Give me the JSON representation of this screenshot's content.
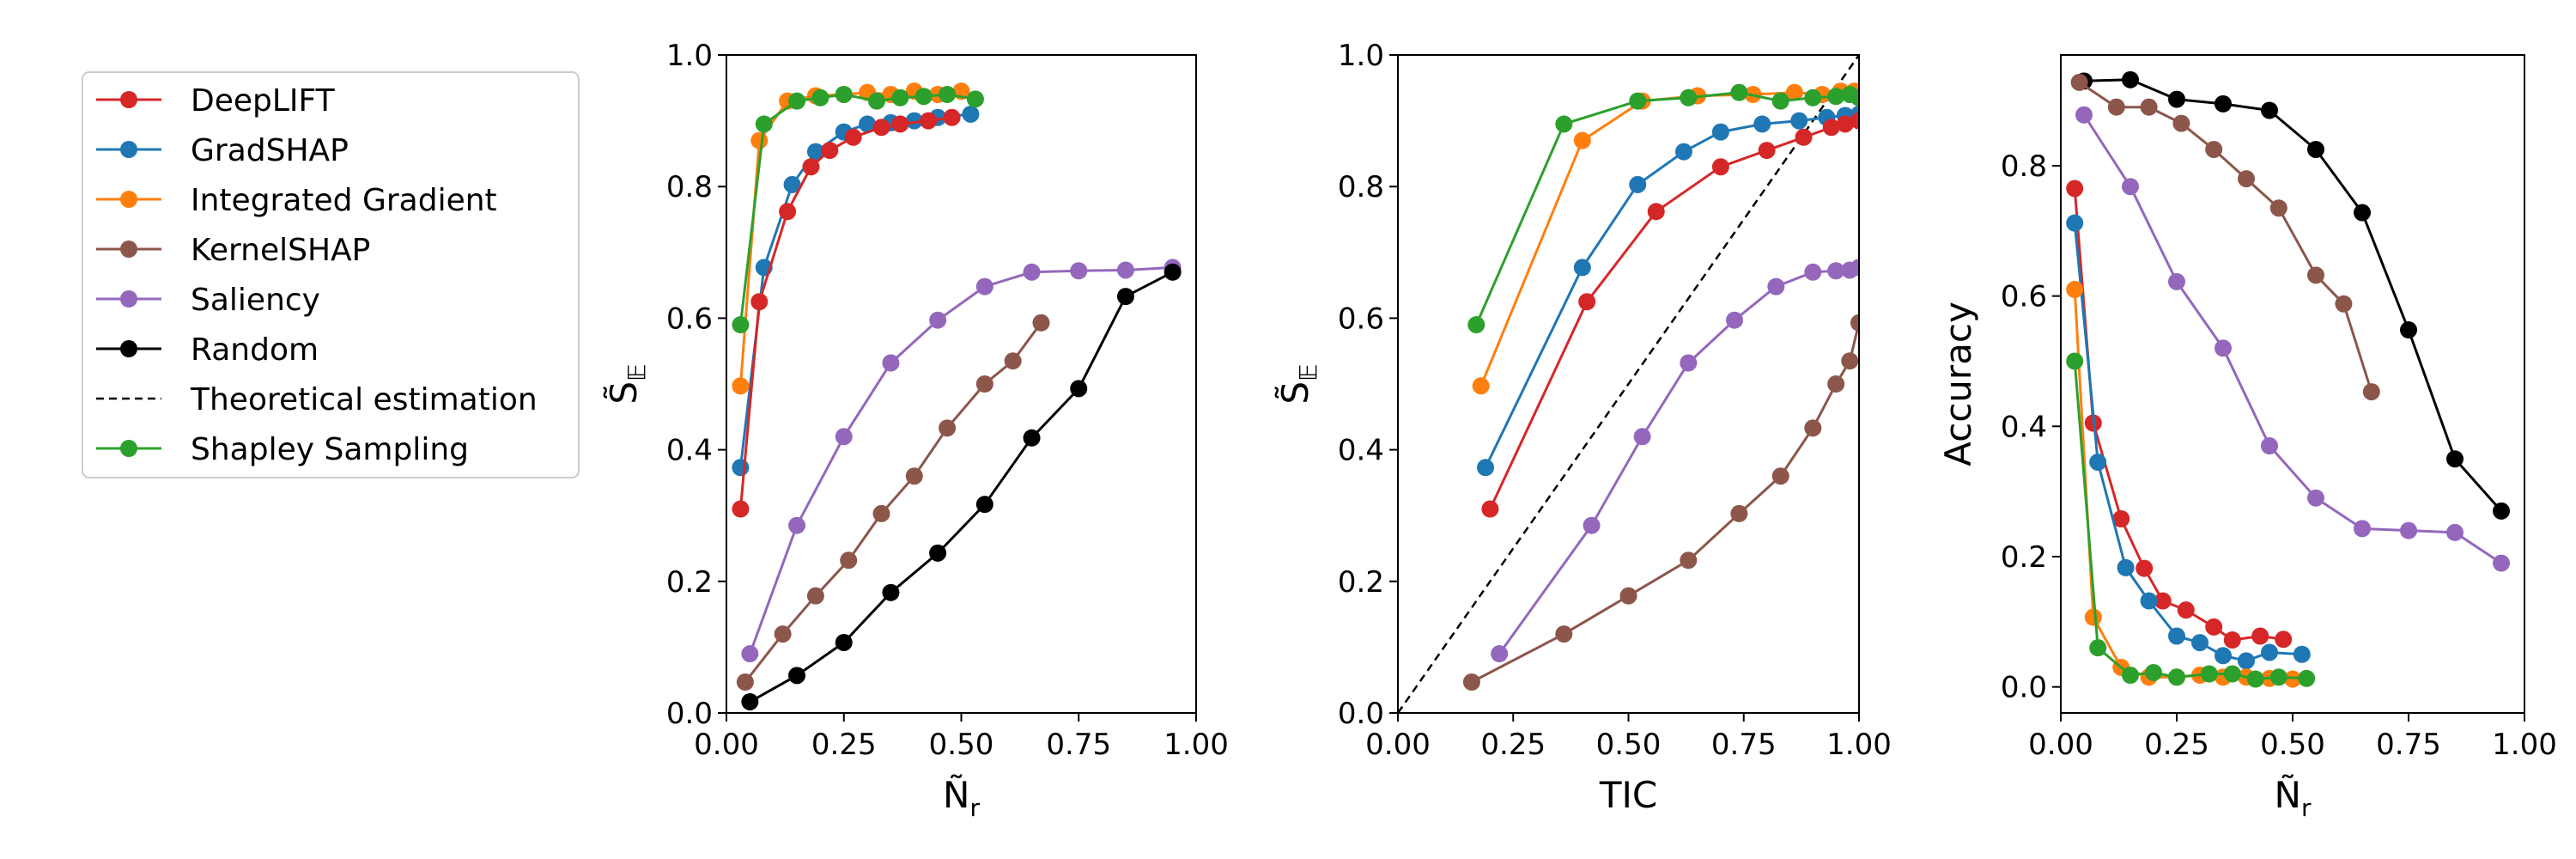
{
  "legend": {
    "entries": [
      {
        "label": "DeepLIFT",
        "color": "#d62728",
        "marker": "circle"
      },
      {
        "label": "GradSHAP",
        "color": "#1f77b4",
        "marker": "circle"
      },
      {
        "label": "Integrated Gradient",
        "color": "#ff7f0e",
        "marker": "circle"
      },
      {
        "label": "KernelSHAP",
        "color": "#8c564b",
        "marker": "circle"
      },
      {
        "label": "Saliency",
        "color": "#9467bd",
        "marker": "circle"
      },
      {
        "label": "Random",
        "color": "#000000",
        "marker": "circle"
      },
      {
        "label": "Theoretical estimation",
        "color": "#000000",
        "marker": "dashed-line"
      },
      {
        "label": "Shapley Sampling",
        "color": "#2ca02c",
        "marker": "circle"
      }
    ]
  },
  "chart_data": [
    {
      "type": "line",
      "xlabel": "Ñ_r",
      "ylabel": "S̃_𝔼",
      "xlim": [
        0,
        1
      ],
      "ylim": [
        0,
        1
      ],
      "xticks": [
        "0.00",
        "0.25",
        "0.50",
        "0.75",
        "1.00"
      ],
      "yticks": [
        "0.0",
        "0.2",
        "0.4",
        "0.6",
        "0.8",
        "1.0"
      ],
      "series": [
        {
          "name": "Saliency",
          "color": "#9467bd",
          "points": [
            [
              0.05,
              0.09
            ],
            [
              0.15,
              0.285
            ],
            [
              0.25,
              0.42
            ],
            [
              0.35,
              0.532
            ],
            [
              0.45,
              0.597
            ],
            [
              0.55,
              0.648
            ],
            [
              0.65,
              0.67
            ],
            [
              0.75,
              0.672
            ],
            [
              0.85,
              0.673
            ],
            [
              0.95,
              0.677
            ]
          ]
        },
        {
          "name": "KernelSHAP",
          "color": "#8c564b",
          "points": [
            [
              0.04,
              0.047
            ],
            [
              0.12,
              0.12
            ],
            [
              0.19,
              0.178
            ],
            [
              0.26,
              0.232
            ],
            [
              0.33,
              0.303
            ],
            [
              0.4,
              0.36
            ],
            [
              0.47,
              0.433
            ],
            [
              0.55,
              0.5
            ],
            [
              0.61,
              0.535
            ],
            [
              0.67,
              0.593
            ]
          ]
        },
        {
          "name": "Random",
          "color": "#000000",
          "points": [
            [
              0.05,
              0.017
            ],
            [
              0.15,
              0.057
            ],
            [
              0.25,
              0.107
            ],
            [
              0.35,
              0.183
            ],
            [
              0.45,
              0.243
            ],
            [
              0.55,
              0.317
            ],
            [
              0.65,
              0.418
            ],
            [
              0.75,
              0.493
            ],
            [
              0.85,
              0.633
            ],
            [
              0.95,
              0.67
            ]
          ]
        },
        {
          "name": "GradSHAP",
          "color": "#1f77b4",
          "points": [
            [
              0.03,
              0.373
            ],
            [
              0.08,
              0.677
            ],
            [
              0.14,
              0.803
            ],
            [
              0.19,
              0.853
            ],
            [
              0.25,
              0.883
            ],
            [
              0.3,
              0.895
            ],
            [
              0.35,
              0.897
            ],
            [
              0.4,
              0.9
            ],
            [
              0.45,
              0.905
            ],
            [
              0.52,
              0.91
            ]
          ]
        },
        {
          "name": "DeepLIFT",
          "color": "#d62728",
          "points": [
            [
              0.03,
              0.31
            ],
            [
              0.07,
              0.625
            ],
            [
              0.13,
              0.762
            ],
            [
              0.18,
              0.83
            ],
            [
              0.22,
              0.855
            ],
            [
              0.27,
              0.875
            ],
            [
              0.33,
              0.89
            ],
            [
              0.37,
              0.895
            ],
            [
              0.43,
              0.9
            ],
            [
              0.48,
              0.905
            ]
          ]
        },
        {
          "name": "Integrated Gradient",
          "color": "#ff7f0e",
          "points": [
            [
              0.03,
              0.497
            ],
            [
              0.07,
              0.87
            ],
            [
              0.13,
              0.93
            ],
            [
              0.19,
              0.938
            ],
            [
              0.25,
              0.94
            ],
            [
              0.3,
              0.943
            ],
            [
              0.35,
              0.94
            ],
            [
              0.4,
              0.945
            ],
            [
              0.45,
              0.94
            ],
            [
              0.5,
              0.945
            ]
          ]
        },
        {
          "name": "Shapley Sampling",
          "color": "#2ca02c",
          "points": [
            [
              0.03,
              0.59
            ],
            [
              0.08,
              0.895
            ],
            [
              0.15,
              0.93
            ],
            [
              0.2,
              0.935
            ],
            [
              0.25,
              0.94
            ],
            [
              0.32,
              0.93
            ],
            [
              0.37,
              0.935
            ],
            [
              0.42,
              0.937
            ],
            [
              0.47,
              0.94
            ],
            [
              0.53,
              0.933
            ]
          ]
        }
      ]
    },
    {
      "type": "line",
      "xlabel": "TIC",
      "ylabel": "S̃_𝔼",
      "xlim": [
        0,
        1
      ],
      "ylim": [
        0,
        1
      ],
      "xticks": [
        "0.00",
        "0.25",
        "0.50",
        "0.75",
        "1.00"
      ],
      "yticks": [
        "0.0",
        "0.2",
        "0.4",
        "0.6",
        "0.8",
        "1.0"
      ],
      "theoretical_line": [
        [
          0,
          0
        ],
        [
          1,
          1
        ]
      ],
      "series": [
        {
          "name": "Saliency",
          "color": "#9467bd",
          "points": [
            [
              0.22,
              0.09
            ],
            [
              0.42,
              0.285
            ],
            [
              0.53,
              0.42
            ],
            [
              0.63,
              0.532
            ],
            [
              0.73,
              0.597
            ],
            [
              0.82,
              0.648
            ],
            [
              0.9,
              0.67
            ],
            [
              0.95,
              0.672
            ],
            [
              0.98,
              0.673
            ],
            [
              1.0,
              0.677
            ]
          ]
        },
        {
          "name": "KernelSHAP",
          "color": "#8c564b",
          "points": [
            [
              0.16,
              0.047
            ],
            [
              0.36,
              0.12
            ],
            [
              0.5,
              0.178
            ],
            [
              0.63,
              0.232
            ],
            [
              0.74,
              0.303
            ],
            [
              0.83,
              0.36
            ],
            [
              0.9,
              0.433
            ],
            [
              0.95,
              0.5
            ],
            [
              0.98,
              0.535
            ],
            [
              1.0,
              0.593
            ]
          ]
        },
        {
          "name": "GradSHAP",
          "color": "#1f77b4",
          "points": [
            [
              0.19,
              0.373
            ],
            [
              0.4,
              0.677
            ],
            [
              0.52,
              0.803
            ],
            [
              0.62,
              0.853
            ],
            [
              0.7,
              0.883
            ],
            [
              0.79,
              0.895
            ],
            [
              0.87,
              0.9
            ],
            [
              0.93,
              0.905
            ],
            [
              0.97,
              0.908
            ],
            [
              1.0,
              0.91
            ]
          ]
        },
        {
          "name": "DeepLIFT",
          "color": "#d62728",
          "points": [
            [
              0.2,
              0.31
            ],
            [
              0.41,
              0.625
            ],
            [
              0.56,
              0.762
            ],
            [
              0.7,
              0.83
            ],
            [
              0.8,
              0.855
            ],
            [
              0.88,
              0.875
            ],
            [
              0.94,
              0.89
            ],
            [
              0.97,
              0.895
            ],
            [
              1.0,
              0.9
            ]
          ]
        },
        {
          "name": "Integrated Gradient",
          "color": "#ff7f0e",
          "points": [
            [
              0.18,
              0.497
            ],
            [
              0.4,
              0.87
            ],
            [
              0.53,
              0.93
            ],
            [
              0.65,
              0.938
            ],
            [
              0.77,
              0.94
            ],
            [
              0.86,
              0.943
            ],
            [
              0.92,
              0.94
            ],
            [
              0.96,
              0.945
            ],
            [
              0.99,
              0.945
            ]
          ]
        },
        {
          "name": "Shapley Sampling",
          "color": "#2ca02c",
          "points": [
            [
              0.17,
              0.59
            ],
            [
              0.36,
              0.895
            ],
            [
              0.52,
              0.93
            ],
            [
              0.63,
              0.935
            ],
            [
              0.74,
              0.943
            ],
            [
              0.83,
              0.93
            ],
            [
              0.9,
              0.935
            ],
            [
              0.95,
              0.937
            ],
            [
              0.98,
              0.94
            ],
            [
              1.0,
              0.935
            ]
          ]
        }
      ]
    },
    {
      "type": "line",
      "xlabel": "Ñ_r",
      "ylabel": "Accuracy",
      "xlim": [
        0,
        1
      ],
      "ylim": [
        -0.04,
        0.97
      ],
      "xticks": [
        "0.00",
        "0.25",
        "0.50",
        "0.75",
        "1.00"
      ],
      "yticks": [
        "0.0",
        "0.2",
        "0.4",
        "0.6",
        "0.8"
      ],
      "series": [
        {
          "name": "Random",
          "color": "#000000",
          "points": [
            [
              0.05,
              0.93
            ],
            [
              0.15,
              0.932
            ],
            [
              0.25,
              0.902
            ],
            [
              0.35,
              0.895
            ],
            [
              0.45,
              0.885
            ],
            [
              0.55,
              0.825
            ],
            [
              0.65,
              0.728
            ],
            [
              0.75,
              0.548
            ],
            [
              0.85,
              0.35
            ],
            [
              0.95,
              0.27
            ]
          ]
        },
        {
          "name": "KernelSHAP",
          "color": "#8c564b",
          "points": [
            [
              0.04,
              0.928
            ],
            [
              0.12,
              0.89
            ],
            [
              0.19,
              0.89
            ],
            [
              0.26,
              0.865
            ],
            [
              0.33,
              0.825
            ],
            [
              0.4,
              0.78
            ],
            [
              0.47,
              0.735
            ],
            [
              0.55,
              0.632
            ],
            [
              0.61,
              0.588
            ],
            [
              0.67,
              0.453
            ]
          ]
        },
        {
          "name": "Saliency",
          "color": "#9467bd",
          "points": [
            [
              0.05,
              0.878
            ],
            [
              0.15,
              0.768
            ],
            [
              0.25,
              0.622
            ],
            [
              0.35,
              0.52
            ],
            [
              0.45,
              0.37
            ],
            [
              0.55,
              0.29
            ],
            [
              0.65,
              0.243
            ],
            [
              0.75,
              0.24
            ],
            [
              0.85,
              0.237
            ],
            [
              0.95,
              0.19
            ]
          ]
        },
        {
          "name": "DeepLIFT",
          "color": "#d62728",
          "points": [
            [
              0.03,
              0.765
            ],
            [
              0.07,
              0.405
            ],
            [
              0.13,
              0.258
            ],
            [
              0.18,
              0.182
            ],
            [
              0.22,
              0.132
            ],
            [
              0.27,
              0.118
            ],
            [
              0.33,
              0.092
            ],
            [
              0.37,
              0.072
            ],
            [
              0.43,
              0.078
            ],
            [
              0.48,
              0.073
            ]
          ]
        },
        {
          "name": "GradSHAP",
          "color": "#1f77b4",
          "points": [
            [
              0.03,
              0.712
            ],
            [
              0.08,
              0.345
            ],
            [
              0.14,
              0.183
            ],
            [
              0.19,
              0.132
            ],
            [
              0.25,
              0.078
            ],
            [
              0.3,
              0.068
            ],
            [
              0.35,
              0.048
            ],
            [
              0.4,
              0.04
            ],
            [
              0.45,
              0.053
            ],
            [
              0.52,
              0.05
            ]
          ]
        },
        {
          "name": "Integrated Gradient",
          "color": "#ff7f0e",
          "points": [
            [
              0.03,
              0.61
            ],
            [
              0.07,
              0.107
            ],
            [
              0.13,
              0.03
            ],
            [
              0.19,
              0.015
            ],
            [
              0.25,
              0.015
            ],
            [
              0.3,
              0.018
            ],
            [
              0.35,
              0.015
            ],
            [
              0.4,
              0.015
            ],
            [
              0.45,
              0.013
            ],
            [
              0.5,
              0.012
            ]
          ]
        },
        {
          "name": "Shapley Sampling",
          "color": "#2ca02c",
          "points": [
            [
              0.03,
              0.5
            ],
            [
              0.08,
              0.06
            ],
            [
              0.15,
              0.018
            ],
            [
              0.2,
              0.022
            ],
            [
              0.25,
              0.015
            ],
            [
              0.32,
              0.02
            ],
            [
              0.37,
              0.02
            ],
            [
              0.42,
              0.012
            ],
            [
              0.47,
              0.015
            ],
            [
              0.53,
              0.013
            ]
          ]
        }
      ]
    }
  ]
}
